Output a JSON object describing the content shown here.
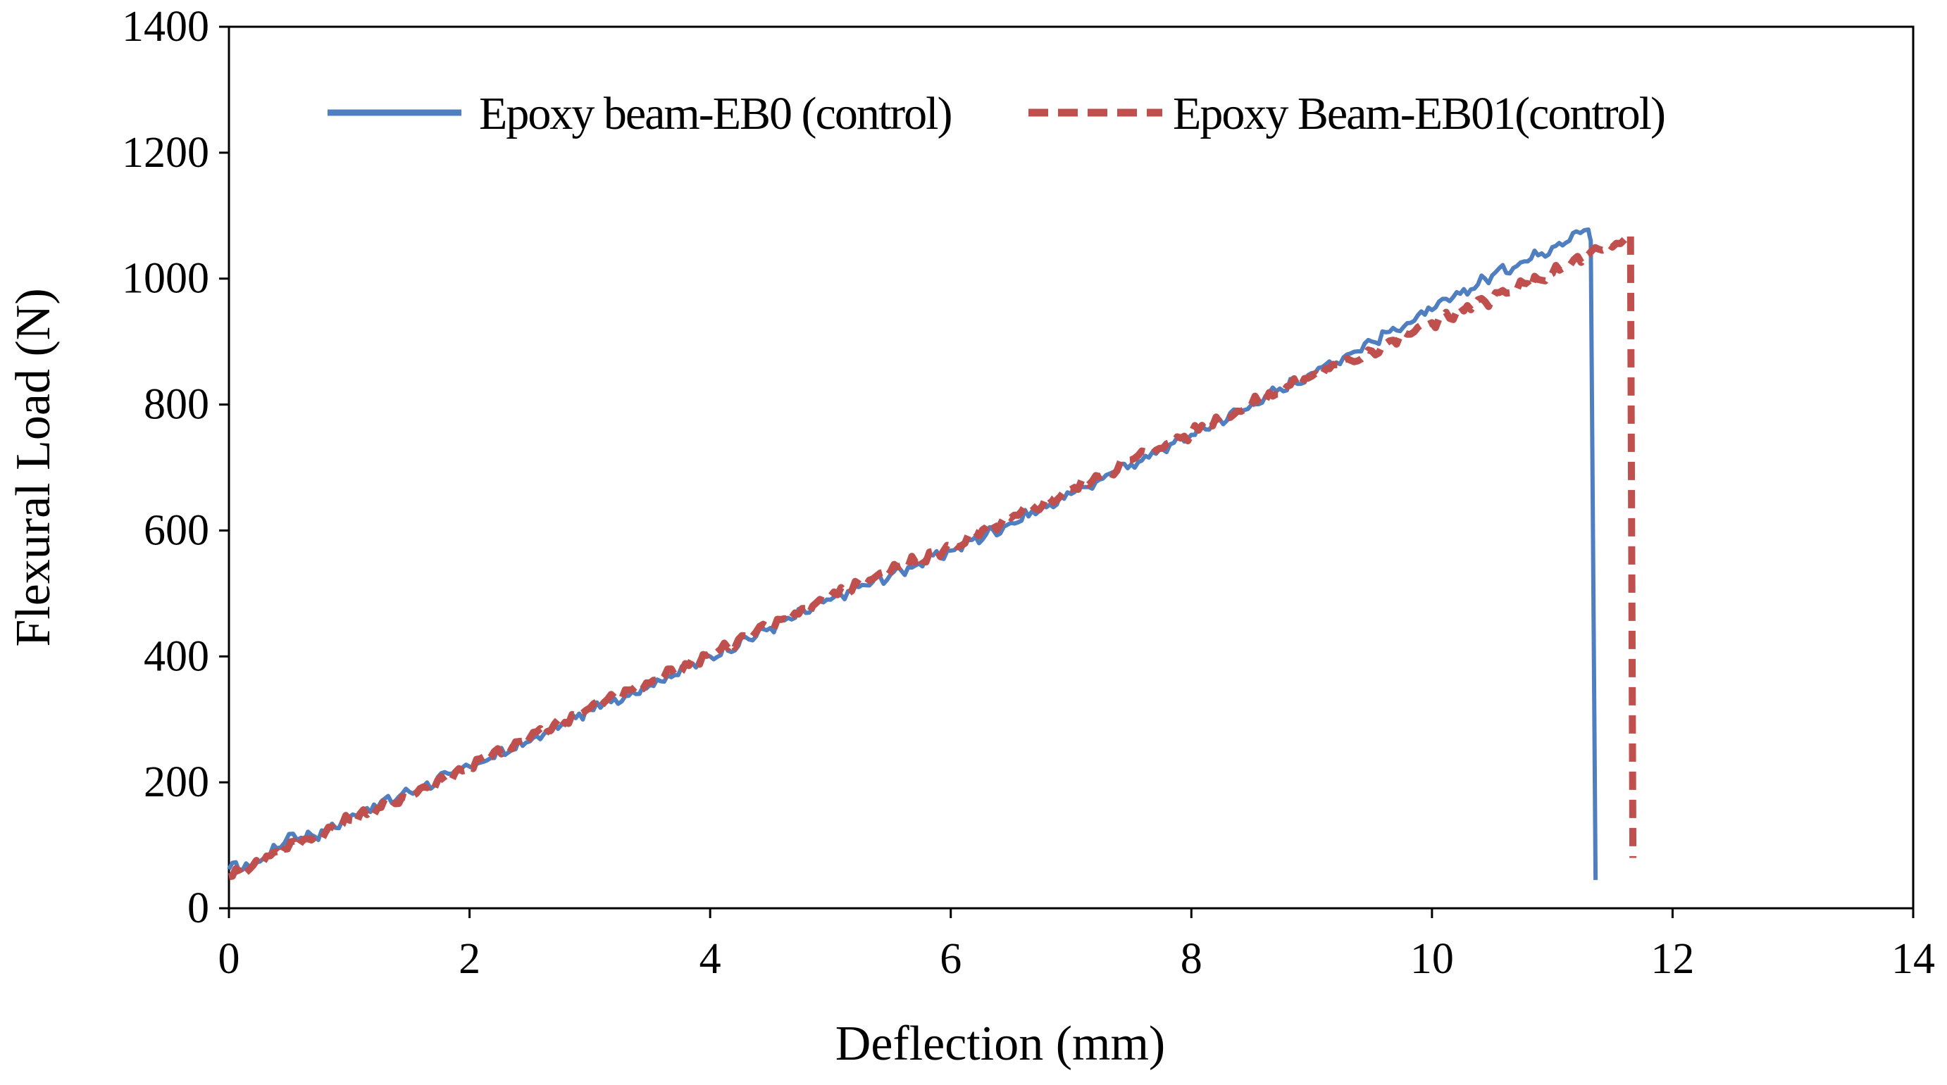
{
  "chart_data": {
    "type": "line",
    "title": "",
    "xlabel": "Deflection (mm)",
    "ylabel": "Flexural Load (N)",
    "xlim": [
      0,
      14
    ],
    "ylim": [
      0,
      1400
    ],
    "xticks": [
      0,
      2,
      4,
      6,
      8,
      10,
      12,
      14
    ],
    "yticks": [
      0,
      200,
      400,
      600,
      800,
      1000,
      1200,
      1400
    ],
    "grid": false,
    "legend_position": "top",
    "series": [
      {
        "name": "Epoxy beam-EB0 (control)",
        "color": "#4f7fc1",
        "dash": "solid",
        "points": [
          [
            0,
            62
          ],
          [
            0.2,
            70
          ],
          [
            0.4,
            95
          ],
          [
            0.5,
            118
          ],
          [
            0.6,
            112
          ],
          [
            0.8,
            122
          ],
          [
            1.0,
            145
          ],
          [
            1.5,
            185
          ],
          [
            2.0,
            225
          ],
          [
            2.5,
            265
          ],
          [
            3.0,
            315
          ],
          [
            3.5,
            355
          ],
          [
            4.0,
            400
          ],
          [
            4.5,
            445
          ],
          [
            5.0,
            490
          ],
          [
            5.5,
            530
          ],
          [
            6.0,
            568
          ],
          [
            6.5,
            612
          ],
          [
            7.0,
            658
          ],
          [
            7.5,
            705
          ],
          [
            8.0,
            752
          ],
          [
            8.5,
            800
          ],
          [
            9.0,
            850
          ],
          [
            9.5,
            900
          ],
          [
            10.0,
            950
          ],
          [
            10.5,
            1005
          ],
          [
            11.0,
            1050
          ],
          [
            11.2,
            1075
          ],
          [
            11.3,
            1078
          ],
          [
            11.32,
            1060
          ],
          [
            11.36,
            45
          ]
        ]
      },
      {
        "name": "Epoxy Beam-EB01(control)",
        "color": "#c0504d",
        "dash": "dashed",
        "points": [
          [
            0,
            50
          ],
          [
            0.2,
            68
          ],
          [
            0.4,
            90
          ],
          [
            0.6,
            105
          ],
          [
            0.8,
            120
          ],
          [
            1.0,
            140
          ],
          [
            1.5,
            180
          ],
          [
            2.0,
            225
          ],
          [
            2.5,
            270
          ],
          [
            3.0,
            318
          ],
          [
            3.5,
            358
          ],
          [
            4.0,
            405
          ],
          [
            4.5,
            448
          ],
          [
            5.0,
            495
          ],
          [
            5.5,
            535
          ],
          [
            6.0,
            575
          ],
          [
            6.5,
            620
          ],
          [
            7.0,
            665
          ],
          [
            7.5,
            712
          ],
          [
            8.0,
            755
          ],
          [
            8.5,
            800
          ],
          [
            9.0,
            845
          ],
          [
            9.5,
            885
          ],
          [
            10.0,
            930
          ],
          [
            10.5,
            968
          ],
          [
            11.0,
            1008
          ],
          [
            11.3,
            1038
          ],
          [
            11.5,
            1050
          ],
          [
            11.6,
            1062
          ],
          [
            11.65,
            1070
          ],
          [
            11.67,
            80
          ]
        ]
      }
    ]
  }
}
